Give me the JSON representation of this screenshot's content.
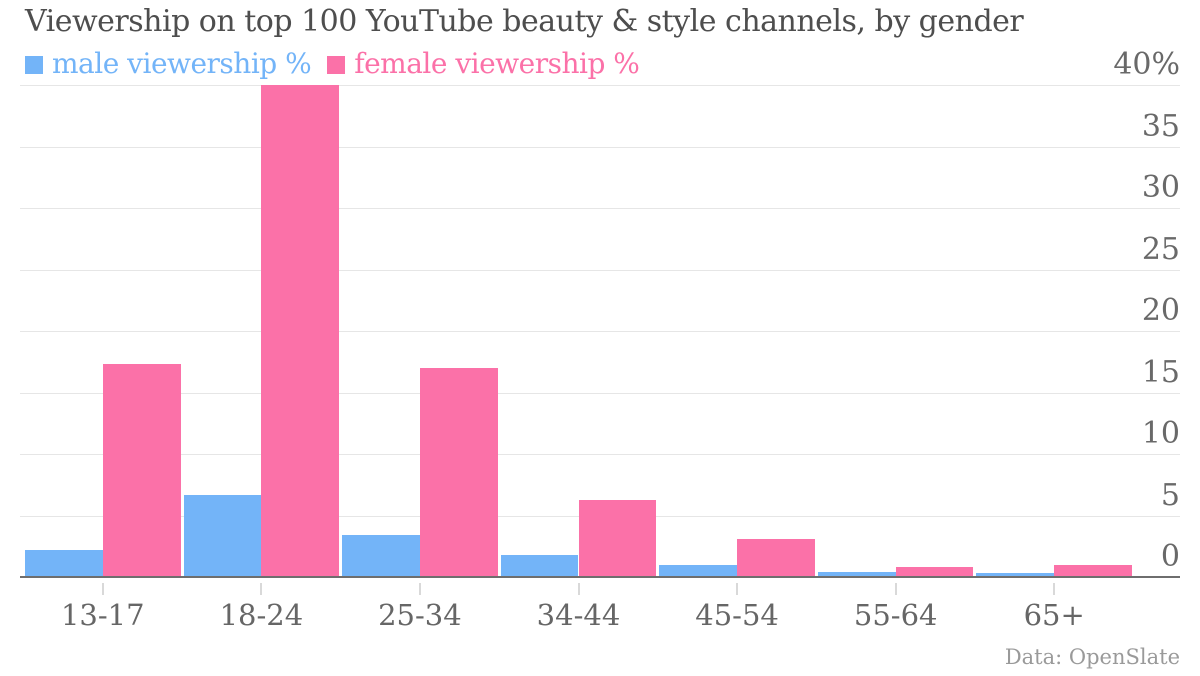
{
  "header": {
    "title": "Viewership on top 100 YouTube beauty & style channels, by gender"
  },
  "legend": [
    {
      "id": "male",
      "label": "male viewership %",
      "color": "#73b4f8"
    },
    {
      "id": "female",
      "label": "female viewership %",
      "color": "#fb71a8"
    }
  ],
  "chart_data": {
    "type": "bar",
    "title": "Viewership on top 100 YouTube beauty & style channels, by gender",
    "categories": [
      "13-17",
      "18-24",
      "25-34",
      "34-44",
      "45-54",
      "55-64",
      "65+"
    ],
    "series": [
      {
        "name": "male viewership %",
        "color": "#73b4f8",
        "values": [
          2.2,
          6.7,
          3.4,
          1.8,
          1.0,
          0.4,
          0.3
        ]
      },
      {
        "name": "female viewership %",
        "color": "#fb71a8",
        "values": [
          17.3,
          40.0,
          17.0,
          6.3,
          3.1,
          0.8,
          1.0
        ]
      }
    ],
    "xlabel": "",
    "ylabel": "",
    "ylim": [
      0,
      40
    ],
    "yticks": [
      0,
      5,
      10,
      15,
      20,
      25,
      30,
      35,
      40
    ],
    "ytick_labels": [
      "0",
      "5",
      "10",
      "15",
      "20",
      "25",
      "30",
      "35",
      "40%"
    ],
    "grid": true,
    "legend_position": "top-left",
    "bar_orientation": "vertical"
  },
  "footer": {
    "credit": "Data: OpenSlate"
  },
  "colors": {
    "male": "#73b4f8",
    "female": "#fb71a8",
    "title_text": "#4e4e4e",
    "axis_text": "#696969",
    "gridline": "#e6e6e6",
    "baseline": "#6e6e6e",
    "credit_text": "#9a9a9a",
    "background": "#ffffff"
  }
}
